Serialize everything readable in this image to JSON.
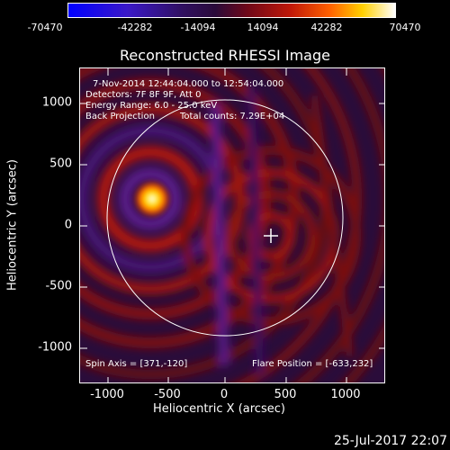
{
  "colorbar": {
    "ticks": [
      "-70470",
      "-42282",
      "-14094",
      "14094",
      "42282",
      "70470"
    ]
  },
  "title": "Reconstructed RHESSI Image",
  "info": {
    "time_range": "7-Nov-2014 12:44:04.000 to 12:54:04.000",
    "detectors": "Detectors: 7F 8F 9F, Att 0",
    "energy_range": "Energy Range: 6.0 - 25.0 keV",
    "method": "Back Projection",
    "total_counts": "Total counts: 7.29E+04",
    "spin_axis": "Spin Axis = [371,-120]",
    "flare_position": "Flare Position = [-633,232]"
  },
  "axes": {
    "x_title": "Heliocentric X (arcsec)",
    "y_title": "Heliocentric Y (arcsec)",
    "x_ticks": [
      "-1000",
      "-500",
      "0",
      "500",
      "1000"
    ],
    "y_ticks": [
      "1000",
      "500",
      "0",
      "-500",
      "-1000"
    ]
  },
  "footer": {
    "timestamp": "25-Jul-2017 22:07"
  }
}
